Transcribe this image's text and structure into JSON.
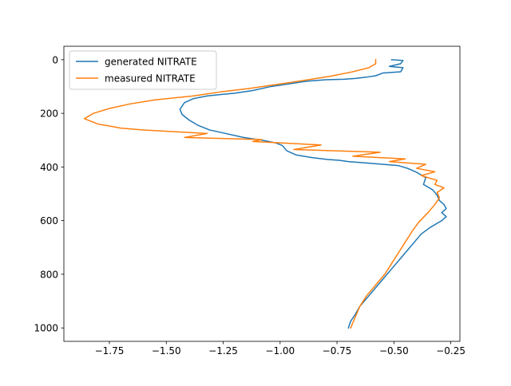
{
  "chart_data": {
    "type": "line",
    "title": "",
    "xlabel": "",
    "ylabel": "",
    "xlim": [
      -1.95,
      -0.21
    ],
    "ylim": [
      1050,
      -50
    ],
    "y_inverted": true,
    "grid": false,
    "legend_position": "upper-left",
    "x_ticks": [
      -1.75,
      -1.5,
      -1.25,
      -1.0,
      -0.75,
      -0.5,
      -0.25
    ],
    "x_tick_labels": [
      "−1.75",
      "−1.50",
      "−1.25",
      "−1.00",
      "−0.75",
      "−0.50",
      "−0.25"
    ],
    "y_ticks": [
      0,
      200,
      400,
      600,
      800,
      1000
    ],
    "y_tick_labels": [
      "0",
      "200",
      "400",
      "600",
      "800",
      "1000"
    ],
    "series": [
      {
        "name": "generated NITRATE",
        "color": "#1f77b4",
        "points": [
          [
            -0.51,
            0
          ],
          [
            -0.46,
            3
          ],
          [
            -0.47,
            15
          ],
          [
            -0.52,
            25
          ],
          [
            -0.46,
            30
          ],
          [
            -0.47,
            45
          ],
          [
            -0.55,
            50
          ],
          [
            -0.58,
            60
          ],
          [
            -0.62,
            65
          ],
          [
            -0.67,
            70
          ],
          [
            -0.72,
            73
          ],
          [
            -0.8,
            75
          ],
          [
            -0.88,
            80
          ],
          [
            -0.96,
            90
          ],
          [
            -1.04,
            100
          ],
          [
            -1.12,
            115
          ],
          [
            -1.2,
            125
          ],
          [
            -1.26,
            130
          ],
          [
            -1.32,
            135
          ],
          [
            -1.38,
            145
          ],
          [
            -1.42,
            160
          ],
          [
            -1.44,
            185
          ],
          [
            -1.43,
            205
          ],
          [
            -1.4,
            225
          ],
          [
            -1.36,
            245
          ],
          [
            -1.31,
            262
          ],
          [
            -1.24,
            275
          ],
          [
            -1.16,
            290
          ],
          [
            -1.08,
            300
          ],
          [
            -1.02,
            310
          ],
          [
            -0.99,
            320
          ],
          [
            -0.97,
            340
          ],
          [
            -0.93,
            355
          ],
          [
            -0.86,
            365
          ],
          [
            -0.79,
            372
          ],
          [
            -0.74,
            375
          ],
          [
            -0.7,
            380
          ],
          [
            -0.62,
            385
          ],
          [
            -0.55,
            390
          ],
          [
            -0.48,
            395
          ],
          [
            -0.44,
            405
          ],
          [
            -0.4,
            420
          ],
          [
            -0.36,
            440
          ],
          [
            -0.37,
            465
          ],
          [
            -0.33,
            485
          ],
          [
            -0.31,
            505
          ],
          [
            -0.3,
            525
          ],
          [
            -0.28,
            540
          ],
          [
            -0.27,
            555
          ],
          [
            -0.29,
            570
          ],
          [
            -0.27,
            585
          ],
          [
            -0.29,
            600
          ],
          [
            -0.34,
            625
          ],
          [
            -0.38,
            650
          ],
          [
            -0.41,
            680
          ],
          [
            -0.44,
            710
          ],
          [
            -0.47,
            740
          ],
          [
            -0.5,
            770
          ],
          [
            -0.53,
            800
          ],
          [
            -0.56,
            830
          ],
          [
            -0.59,
            860
          ],
          [
            -0.62,
            890
          ],
          [
            -0.65,
            920
          ],
          [
            -0.67,
            950
          ],
          [
            -0.69,
            975
          ],
          [
            -0.7,
            1000
          ]
        ]
      },
      {
        "name": "measured NITRATE",
        "color": "#ff7f0e",
        "points": [
          [
            -0.58,
            0
          ],
          [
            -0.58,
            15
          ],
          [
            -0.61,
            30
          ],
          [
            -0.68,
            45
          ],
          [
            -0.78,
            62
          ],
          [
            -0.9,
            78
          ],
          [
            -1.02,
            93
          ],
          [
            -1.14,
            108
          ],
          [
            -1.26,
            120
          ],
          [
            -1.38,
            135
          ],
          [
            -1.55,
            150
          ],
          [
            -1.66,
            165
          ],
          [
            -1.75,
            182
          ],
          [
            -1.82,
            200
          ],
          [
            -1.86,
            220
          ],
          [
            -1.8,
            240
          ],
          [
            -1.7,
            255
          ],
          [
            -1.6,
            262
          ],
          [
            -1.32,
            275
          ],
          [
            -1.42,
            290
          ],
          [
            -1.08,
            298
          ],
          [
            -1.12,
            305
          ],
          [
            -0.82,
            318
          ],
          [
            -0.94,
            335
          ],
          [
            -0.56,
            345
          ],
          [
            -0.68,
            360
          ],
          [
            -0.45,
            370
          ],
          [
            -0.52,
            380
          ],
          [
            -0.36,
            390
          ],
          [
            -0.4,
            405
          ],
          [
            -0.32,
            418
          ],
          [
            -0.38,
            432
          ],
          [
            -0.31,
            450
          ],
          [
            -0.32,
            465
          ],
          [
            -0.28,
            478
          ],
          [
            -0.31,
            495
          ],
          [
            -0.3,
            515
          ],
          [
            -0.32,
            540
          ],
          [
            -0.35,
            570
          ],
          [
            -0.39,
            605
          ],
          [
            -0.42,
            640
          ],
          [
            -0.45,
            680
          ],
          [
            -0.48,
            720
          ],
          [
            -0.51,
            760
          ],
          [
            -0.54,
            800
          ],
          [
            -0.58,
            840
          ],
          [
            -0.62,
            880
          ],
          [
            -0.65,
            920
          ],
          [
            -0.67,
            960
          ],
          [
            -0.69,
            1000
          ]
        ]
      }
    ]
  }
}
